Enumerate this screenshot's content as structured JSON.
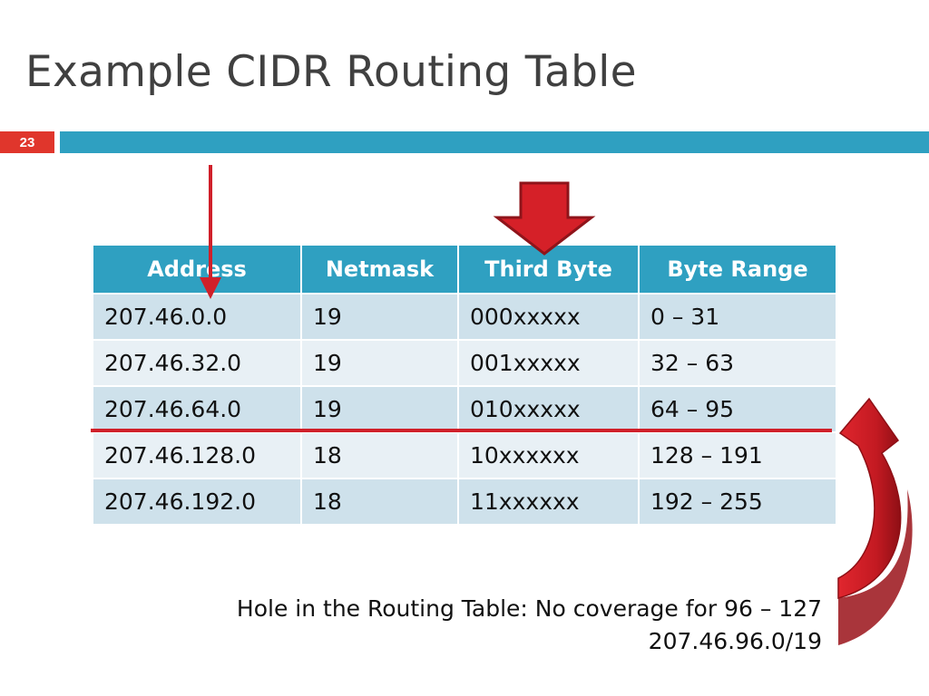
{
  "slide": {
    "title": "Example CIDR Routing Table",
    "number": "23"
  },
  "table": {
    "headers": [
      "Address",
      "Netmask",
      "Third Byte",
      "Byte Range"
    ],
    "rows": [
      [
        "207.46.0.0",
        "19",
        "000xxxxx",
        "0 – 31"
      ],
      [
        "207.46.32.0",
        "19",
        "001xxxxx",
        "32 – 63"
      ],
      [
        "207.46.64.0",
        "19",
        "010xxxxx",
        "64 – 95"
      ],
      [
        "207.46.128.0",
        "18",
        "10xxxxxx",
        "128 – 191"
      ],
      [
        "207.46.192.0",
        "18",
        "11xxxxxx",
        "192 – 255"
      ]
    ]
  },
  "note": {
    "line1": "Hole in the Routing Table: No coverage for 96 – 127",
    "line2": "207.46.96.0/19"
  },
  "colors": {
    "accent_blue": "#2fa0c1",
    "accent_red": "#e0362c",
    "arrow_red": "#d0202a",
    "row_dark": "#cee1eb",
    "row_light": "#e8f0f5"
  },
  "icons": [
    "arrow-down-thin-icon",
    "block-arrow-down-icon",
    "curved-arrow-up-icon"
  ]
}
